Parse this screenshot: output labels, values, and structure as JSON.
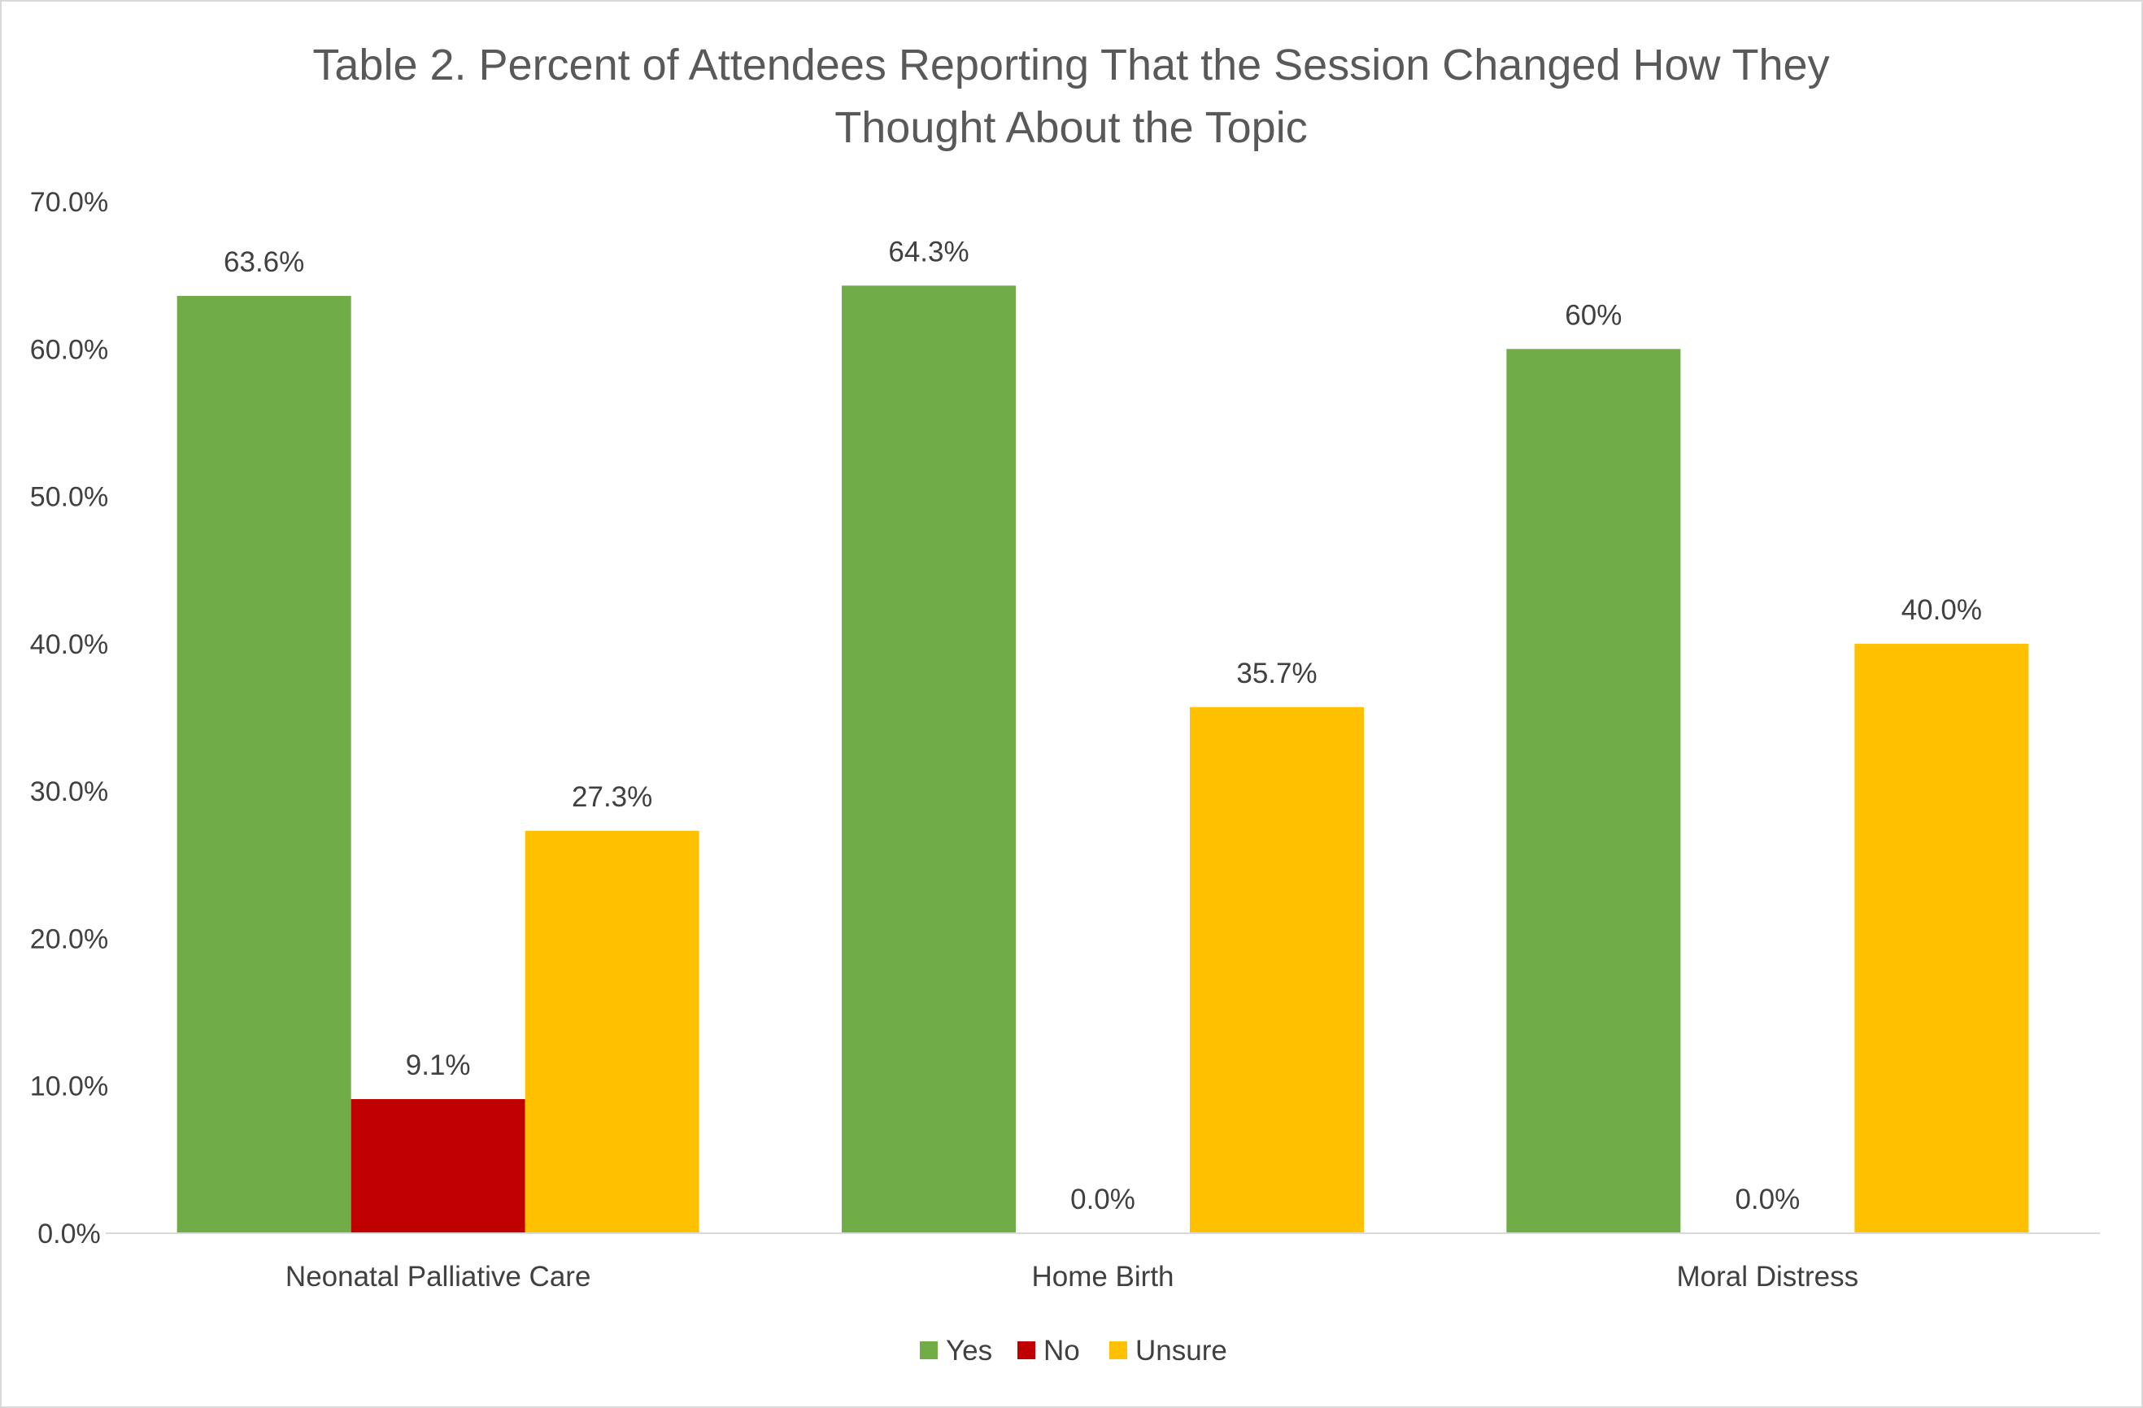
{
  "chart_data": {
    "type": "bar",
    "title_lines": [
      "Table 2. Percent of Attendees Reporting That the Session Changed How They",
      "Thought About the Topic"
    ],
    "categories": [
      "Neonatal Palliative Care",
      "Home Birth",
      "Moral Distress"
    ],
    "series": [
      {
        "name": "Yes",
        "color": "#70ad47",
        "values": [
          63.6,
          64.3,
          60.0
        ],
        "labels": [
          "63.6%",
          "64.3%",
          "60%"
        ]
      },
      {
        "name": "No",
        "color": "#c00000",
        "values": [
          9.1,
          0.0,
          0.0
        ],
        "labels": [
          "9.1%",
          "0.0%",
          "0.0%"
        ]
      },
      {
        "name": "Unsure",
        "color": "#ffc000",
        "values": [
          27.3,
          35.7,
          40.0
        ],
        "labels": [
          "27.3%",
          "35.7%",
          "40.0%"
        ]
      }
    ],
    "y_ticks": [
      "0.0%",
      "10.0%",
      "20.0%",
      "30.0%",
      "40.0%",
      "50.0%",
      "60.0%",
      "70.0%"
    ],
    "ylim": [
      0,
      70
    ],
    "xlabel": "",
    "ylabel": "",
    "grid": false,
    "legend_position": "bottom"
  }
}
